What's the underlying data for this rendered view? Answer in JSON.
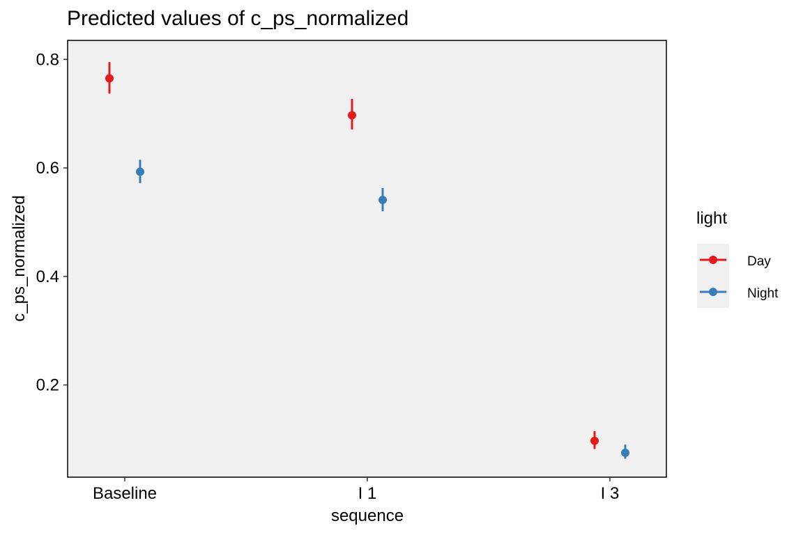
{
  "chart_data": {
    "type": "scatter",
    "title": "Predicted values of c_ps_normalized",
    "xlabel": "sequence",
    "ylabel": "c_ps_normalized",
    "categories": [
      "Baseline",
      "I 1",
      "I 3"
    ],
    "ylim": [
      0.03,
      0.835
    ],
    "yticks": [
      0.2,
      0.4,
      0.6,
      0.8
    ],
    "ytick_labels": [
      "0.2",
      "0.4",
      "0.6",
      "0.8"
    ],
    "grid": false,
    "legend": {
      "title": "light",
      "placement": "right"
    },
    "series": [
      {
        "name": "Day",
        "color": "#e41a1c",
        "values": [
          0.765,
          0.697,
          0.097
        ],
        "lower": [
          0.737,
          0.671,
          0.082
        ],
        "upper": [
          0.795,
          0.727,
          0.115
        ]
      },
      {
        "name": "Night",
        "color": "#377eb8",
        "values": [
          0.593,
          0.541,
          0.075
        ],
        "lower": [
          0.572,
          0.52,
          0.064
        ],
        "upper": [
          0.615,
          0.563,
          0.09
        ]
      }
    ]
  }
}
